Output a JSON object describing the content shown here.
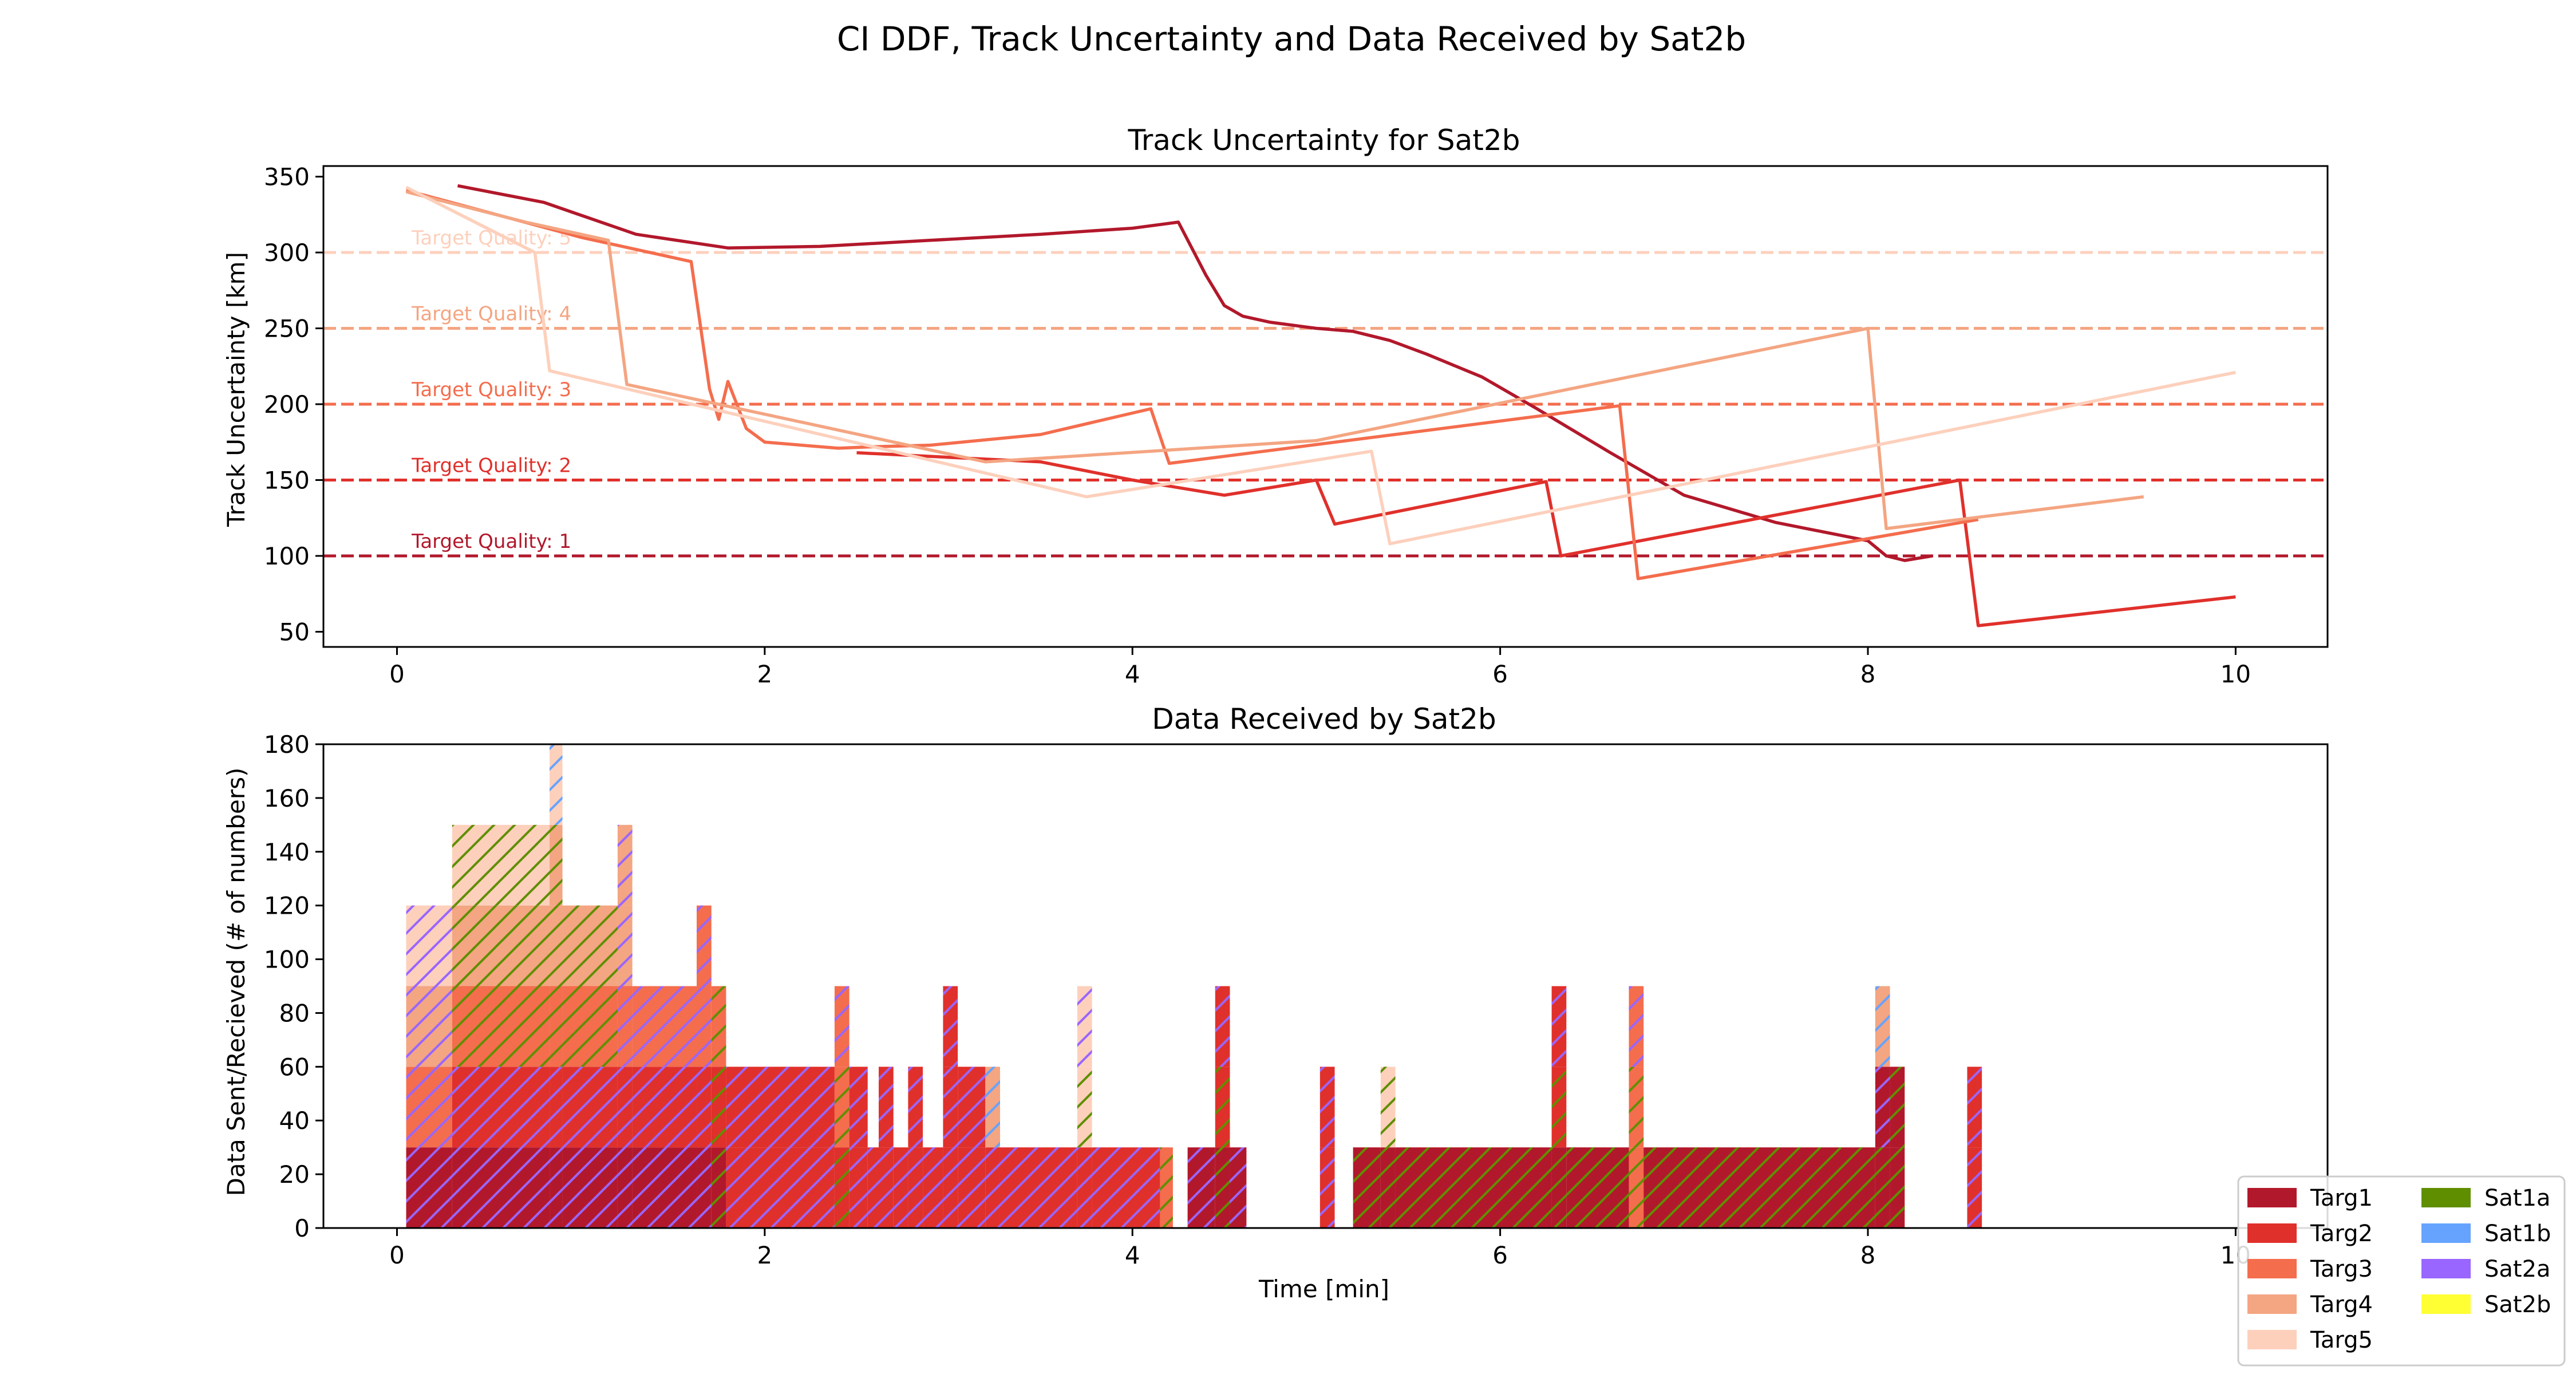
{
  "suptitle": "CI DDF, Track Uncertainty and Data Received by Sat2b",
  "chart_data": [
    {
      "type": "line",
      "title": "Track Uncertainty for Sat2b",
      "xlabel": "",
      "ylabel": "Track Uncertainty [km]",
      "xlim": [
        -0.4,
        10.5
      ],
      "ylim": [
        40,
        357
      ],
      "xticks": [
        "0",
        "2",
        "4",
        "6",
        "8",
        "10"
      ],
      "yticks": [
        "50",
        "100",
        "150",
        "200",
        "250",
        "300",
        "350"
      ],
      "grid": false,
      "target_lines": [
        {
          "label": "Target Quality: 1",
          "y": 100,
          "color": "#b2182b"
        },
        {
          "label": "Target Quality: 2",
          "y": 150,
          "color": "#e0302b"
        },
        {
          "label": "Target Quality: 3",
          "y": 200,
          "color": "#f46d4d"
        },
        {
          "label": "Target Quality: 4",
          "y": 250,
          "color": "#f4a582"
        },
        {
          "label": "Target Quality: 5",
          "y": 300,
          "color": "#fdd0bc"
        }
      ],
      "series": [
        {
          "name": "Targ1",
          "color": "#b2182b",
          "x": [
            0.33,
            0.8,
            1.3,
            1.8,
            2.3,
            2.9,
            3.5,
            4.0,
            4.25,
            4.4,
            4.5,
            4.6,
            4.75,
            5.0,
            5.2,
            5.4,
            5.6,
            5.9,
            6.2,
            6.6,
            7.0,
            7.5,
            8.0,
            8.1,
            8.2,
            8.35
          ],
          "y": [
            344,
            333,
            312,
            303,
            304,
            308,
            312,
            316,
            320,
            285,
            265,
            258,
            254,
            250,
            248,
            242,
            233,
            218,
            197,
            168,
            140,
            122,
            110,
            100,
            97,
            100
          ]
        },
        {
          "name": "Targ2",
          "color": "#e0302b",
          "x": [
            2.5,
            3.5,
            4.0,
            4.5,
            5.0,
            5.1,
            6.25,
            6.33,
            8.5,
            8.6,
            10.0
          ],
          "y": [
            168,
            162,
            150,
            140,
            150,
            121,
            149,
            100,
            150,
            54,
            73
          ]
        },
        {
          "name": "Targ3",
          "color": "#f46d4d",
          "x": [
            0.05,
            1.0,
            1.6,
            1.7,
            1.75,
            1.8,
            1.9,
            2.0,
            2.4,
            2.6,
            2.9,
            3.5,
            4.1,
            4.2,
            6.65,
            6.75,
            8.6
          ],
          "y": [
            341,
            310,
            294,
            210,
            190,
            215,
            184,
            175,
            171,
            172,
            173,
            180,
            197,
            161,
            199,
            85,
            124
          ]
        },
        {
          "name": "Targ4",
          "color": "#f4a582",
          "x": [
            0.05,
            0.7,
            1.15,
            1.25,
            1.25,
            3.2,
            5.0,
            8.0,
            8.1,
            9.5
          ],
          "y": [
            340,
            320,
            308,
            213,
            213,
            162,
            176,
            250,
            118,
            139
          ]
        },
        {
          "name": "Targ5",
          "color": "#fdd0bc",
          "x": [
            0.05,
            0.75,
            0.83,
            3.75,
            5.3,
            5.4,
            10.0
          ],
          "y": [
            343,
            300,
            222,
            139,
            169,
            108,
            221
          ]
        }
      ]
    },
    {
      "type": "bar",
      "title": "Data Received by Sat2b",
      "xlabel": "Time [min]",
      "ylabel": "Data Sent/Recieved (# of numbers)",
      "xlim": [
        -0.4,
        10.5
      ],
      "ylim": [
        0,
        180
      ],
      "xticks": [
        "0",
        "2",
        "4",
        "6",
        "8",
        "10"
      ],
      "yticks": [
        "0",
        "20",
        "40",
        "60",
        "80",
        "100",
        "120",
        "140",
        "160",
        "180"
      ],
      "grid": false,
      "stacking": "stacked, 30 per target layer, hatched by sending satellite",
      "bars": [
        {
          "x0": 0.05,
          "x1": 0.3,
          "layers": [
            {
              "target": "Targ1",
              "sender": "Sat2a"
            },
            {
              "target": "Targ3",
              "sender": "Sat2a"
            },
            {
              "target": "Targ4",
              "sender": "Sat2a"
            },
            {
              "target": "Targ5",
              "sender": "Sat2a"
            }
          ]
        },
        {
          "x0": 0.3,
          "x1": 0.83,
          "layers": [
            {
              "target": "Targ1",
              "sender": "Sat2a"
            },
            {
              "target": "Targ2",
              "sender": "Sat2a"
            },
            {
              "target": "Targ3",
              "sender": "Sat1a"
            },
            {
              "target": "Targ4",
              "sender": "Sat1a"
            },
            {
              "target": "Targ5",
              "sender": "Sat1a"
            }
          ]
        },
        {
          "x0": 0.83,
          "x1": 0.9,
          "layers": [
            {
              "target": "Targ1",
              "sender": "Sat2a"
            },
            {
              "target": "Targ2",
              "sender": "Sat2a"
            },
            {
              "target": "Targ3",
              "sender": "Sat1a"
            },
            {
              "target": "Targ4",
              "sender": "Sat1a"
            },
            {
              "target": "Targ4",
              "sender": "Sat1a"
            },
            {
              "target": "Targ5",
              "sender": "Sat1b"
            }
          ]
        },
        {
          "x0": 0.9,
          "x1": 1.2,
          "layers": [
            {
              "target": "Targ1",
              "sender": "Sat2a"
            },
            {
              "target": "Targ2",
              "sender": "Sat2a"
            },
            {
              "target": "Targ3",
              "sender": "Sat1a"
            },
            {
              "target": "Targ4",
              "sender": "Sat1a"
            }
          ]
        },
        {
          "x0": 1.2,
          "x1": 1.28,
          "layers": [
            {
              "target": "Targ1",
              "sender": "Sat2a"
            },
            {
              "target": "Targ2",
              "sender": "Sat2a"
            },
            {
              "target": "Targ3",
              "sender": "Sat2a"
            },
            {
              "target": "Targ4",
              "sender": "Sat2a"
            },
            {
              "target": "Targ4",
              "sender": "Sat2a"
            }
          ]
        },
        {
          "x0": 1.28,
          "x1": 1.63,
          "layers": [
            {
              "target": "Targ1",
              "sender": "Sat2a"
            },
            {
              "target": "Targ2",
              "sender": "Sat2a"
            },
            {
              "target": "Targ3",
              "sender": "Sat2a"
            }
          ]
        },
        {
          "x0": 1.63,
          "x1": 1.71,
          "layers": [
            {
              "target": "Targ1",
              "sender": "Sat2a"
            },
            {
              "target": "Targ2",
              "sender": "Sat2a"
            },
            {
              "target": "Targ3",
              "sender": "Sat2a"
            },
            {
              "target": "Targ3",
              "sender": "Sat2a"
            }
          ]
        },
        {
          "x0": 1.71,
          "x1": 1.79,
          "layers": [
            {
              "target": "Targ1",
              "sender": "Sat1a"
            },
            {
              "target": "Targ2",
              "sender": "Sat1a"
            },
            {
              "target": "Targ3",
              "sender": "Sat1a"
            }
          ]
        },
        {
          "x0": 1.79,
          "x1": 2.38,
          "layers": [
            {
              "target": "Targ2",
              "sender": "Sat2a"
            },
            {
              "target": "Targ2",
              "sender": "Sat2a"
            }
          ]
        },
        {
          "x0": 2.38,
          "x1": 2.46,
          "layers": [
            {
              "target": "Targ2",
              "sender": "Sat1a"
            },
            {
              "target": "Targ3",
              "sender": "Sat1a"
            },
            {
              "target": "Targ3",
              "sender": "Sat2a"
            }
          ]
        },
        {
          "x0": 2.46,
          "x1": 2.56,
          "layers": [
            {
              "target": "Targ2",
              "sender": "Sat2a"
            },
            {
              "target": "Targ2",
              "sender": "Sat2a"
            }
          ]
        },
        {
          "x0": 2.56,
          "x1": 2.62,
          "layers": [
            {
              "target": "Targ2",
              "sender": "Sat2a"
            }
          ]
        },
        {
          "x0": 2.62,
          "x1": 2.7,
          "layers": [
            {
              "target": "Targ2",
              "sender": "Sat2a"
            },
            {
              "target": "Targ2",
              "sender": "Sat2a"
            }
          ]
        },
        {
          "x0": 2.7,
          "x1": 2.78,
          "layers": [
            {
              "target": "Targ2",
              "sender": "Sat2a"
            }
          ]
        },
        {
          "x0": 2.78,
          "x1": 2.86,
          "layers": [
            {
              "target": "Targ2",
              "sender": "Sat2a"
            },
            {
              "target": "Targ2",
              "sender": "Sat2a"
            }
          ]
        },
        {
          "x0": 2.86,
          "x1": 2.97,
          "layers": [
            {
              "target": "Targ2",
              "sender": "Sat2a"
            }
          ]
        },
        {
          "x0": 2.97,
          "x1": 3.05,
          "layers": [
            {
              "target": "Targ2",
              "sender": "Sat2a"
            },
            {
              "target": "Targ2",
              "sender": "Sat2a"
            },
            {
              "target": "Targ2",
              "sender": "Sat2a"
            }
          ]
        },
        {
          "x0": 3.05,
          "x1": 3.2,
          "layers": [
            {
              "target": "Targ2",
              "sender": "Sat2a"
            },
            {
              "target": "Targ2",
              "sender": "Sat2a"
            }
          ]
        },
        {
          "x0": 3.2,
          "x1": 3.28,
          "layers": [
            {
              "target": "Targ2",
              "sender": "Sat2a"
            },
            {
              "target": "Targ4",
              "sender": "Sat1b"
            }
          ]
        },
        {
          "x0": 3.28,
          "x1": 3.7,
          "layers": [
            {
              "target": "Targ2",
              "sender": "Sat2a"
            }
          ]
        },
        {
          "x0": 3.7,
          "x1": 3.78,
          "layers": [
            {
              "target": "Targ2",
              "sender": "Sat2a"
            },
            {
              "target": "Targ5",
              "sender": "Sat1a"
            },
            {
              "target": "Targ5",
              "sender": "Sat2a"
            }
          ]
        },
        {
          "x0": 3.78,
          "x1": 4.15,
          "layers": [
            {
              "target": "Targ2",
              "sender": "Sat2a"
            }
          ]
        },
        {
          "x0": 4.15,
          "x1": 4.22,
          "layers": [
            {
              "target": "Targ3",
              "sender": "Sat1a"
            }
          ]
        },
        {
          "x0": 4.3,
          "x1": 4.45,
          "layers": [
            {
              "target": "Targ1",
              "sender": "Sat2a"
            }
          ]
        },
        {
          "x0": 4.45,
          "x1": 4.53,
          "layers": [
            {
              "target": "Targ1",
              "sender": "Sat1a"
            },
            {
              "target": "Targ2",
              "sender": "Sat1a"
            },
            {
              "target": "Targ2",
              "sender": "Sat2a"
            }
          ]
        },
        {
          "x0": 4.53,
          "x1": 4.62,
          "layers": [
            {
              "target": "Targ1",
              "sender": "Sat2a"
            }
          ]
        },
        {
          "x0": 5.02,
          "x1": 5.1,
          "layers": [
            {
              "target": "Targ2",
              "sender": "Sat2a"
            },
            {
              "target": "Targ2",
              "sender": "Sat2a"
            }
          ]
        },
        {
          "x0": 5.2,
          "x1": 5.35,
          "layers": [
            {
              "target": "Targ1",
              "sender": "Sat1a"
            }
          ]
        },
        {
          "x0": 5.35,
          "x1": 5.43,
          "layers": [
            {
              "target": "Targ1",
              "sender": "Sat1a"
            },
            {
              "target": "Targ5",
              "sender": "Sat1a"
            }
          ]
        },
        {
          "x0": 5.43,
          "x1": 6.28,
          "layers": [
            {
              "target": "Targ1",
              "sender": "Sat1a"
            }
          ]
        },
        {
          "x0": 6.28,
          "x1": 6.36,
          "layers": [
            {
              "target": "Targ1",
              "sender": "Sat1a"
            },
            {
              "target": "Targ2",
              "sender": "Sat1a"
            },
            {
              "target": "Targ2",
              "sender": "Sat2a"
            }
          ]
        },
        {
          "x0": 6.36,
          "x1": 6.7,
          "layers": [
            {
              "target": "Targ1",
              "sender": "Sat1a"
            }
          ]
        },
        {
          "x0": 6.7,
          "x1": 6.78,
          "layers": [
            {
              "target": "Targ3",
              "sender": "Sat1a"
            },
            {
              "target": "Targ3",
              "sender": "Sat1a"
            },
            {
              "target": "Targ3",
              "sender": "Sat2a"
            }
          ]
        },
        {
          "x0": 6.78,
          "x1": 8.04,
          "layers": [
            {
              "target": "Targ1",
              "sender": "Sat1a"
            }
          ]
        },
        {
          "x0": 8.04,
          "x1": 8.12,
          "layers": [
            {
              "target": "Targ1",
              "sender": "Sat1a"
            },
            {
              "target": "Targ1",
              "sender": "Sat2a"
            },
            {
              "target": "Targ4",
              "sender": "Sat1b"
            }
          ]
        },
        {
          "x0": 8.12,
          "x1": 8.2,
          "layers": [
            {
              "target": "Targ1",
              "sender": "Sat1a"
            },
            {
              "target": "Targ1",
              "sender": "Sat1a"
            }
          ]
        },
        {
          "x0": 8.54,
          "x1": 8.62,
          "layers": [
            {
              "target": "Targ2",
              "sender": "Sat2a"
            },
            {
              "target": "Targ2",
              "sender": "Sat2a"
            }
          ]
        }
      ]
    }
  ],
  "legend": {
    "placement": "bottom-right",
    "targets": [
      {
        "label": "Targ1",
        "color": "#b2182b"
      },
      {
        "label": "Targ2",
        "color": "#e0302b"
      },
      {
        "label": "Targ3",
        "color": "#f46d4d"
      },
      {
        "label": "Targ4",
        "color": "#f4a582"
      },
      {
        "label": "Targ5",
        "color": "#fdd0bc"
      }
    ],
    "satellites": [
      {
        "label": "Sat1a",
        "color": "#5f8f00"
      },
      {
        "label": "Sat1b",
        "color": "#66a3ff"
      },
      {
        "label": "Sat2a",
        "color": "#9966ff"
      },
      {
        "label": "Sat2b",
        "color": "#ffff33"
      }
    ]
  }
}
